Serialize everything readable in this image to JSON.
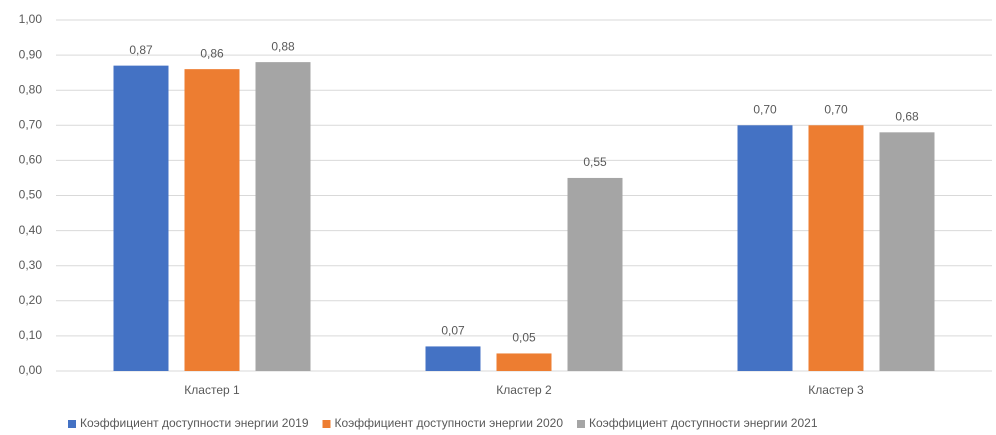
{
  "chart_data": {
    "type": "bar",
    "categories": [
      "Кластер 1",
      "Кластер 2",
      "Кластер 3"
    ],
    "series": [
      {
        "name": "Коэффициент доступности энергии 2019",
        "color": "#4472c4",
        "values": [
          0.87,
          0.07,
          0.7
        ],
        "value_labels": [
          "0,87",
          "0,07",
          "0,70"
        ]
      },
      {
        "name": "Коэффициент доступности энергии 2020",
        "color": "#ed7d31",
        "values": [
          0.86,
          0.05,
          0.7
        ],
        "value_labels": [
          "0,86",
          "0,05",
          "0,70"
        ]
      },
      {
        "name": "Коэффициент доступности энергии 2021",
        "color": "#a5a5a5",
        "values": [
          0.88,
          0.55,
          0.68
        ],
        "value_labels": [
          "0,88",
          "0,55",
          "0,68"
        ]
      }
    ],
    "ylim": [
      0,
      1
    ],
    "yticks": [
      {
        "value": 0,
        "label": "0,00"
      },
      {
        "value": 0.1,
        "label": "0,10"
      },
      {
        "value": 0.2,
        "label": "0,20"
      },
      {
        "value": 0.3,
        "label": "0,30"
      },
      {
        "value": 0.4,
        "label": "0,40"
      },
      {
        "value": 0.5,
        "label": "0,50"
      },
      {
        "value": 0.6,
        "label": "0,60"
      },
      {
        "value": 0.7,
        "label": "0,70"
      },
      {
        "value": 0.8,
        "label": "0,80"
      },
      {
        "value": 0.9,
        "label": "0,90"
      },
      {
        "value": 1,
        "label": "1,00"
      }
    ],
    "grid": true,
    "legend": "bottom"
  }
}
